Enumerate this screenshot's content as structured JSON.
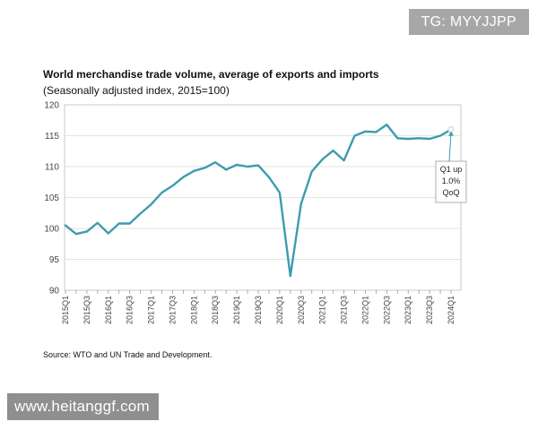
{
  "watermarks": {
    "top": "TG: MYYJJPP",
    "bottom": "www.heitanggf.com"
  },
  "source_note": "Source: WTO and UN Trade and Development.",
  "chart_data": {
    "type": "line",
    "title": "World merchandise trade volume, average of exports and imports",
    "subtitle": "(Seasonally adjusted index, 2015=100)",
    "xlabel": "",
    "ylabel": "",
    "ylim": [
      90,
      120
    ],
    "yticks": [
      90,
      95,
      100,
      105,
      110,
      115,
      120
    ],
    "grid": true,
    "categories": [
      "2015Q1",
      "2015Q2",
      "2015Q3",
      "2015Q4",
      "2016Q1",
      "2016Q2",
      "2016Q3",
      "2016Q4",
      "2017Q1",
      "2017Q2",
      "2017Q3",
      "2017Q4",
      "2018Q1",
      "2018Q2",
      "2018Q3",
      "2018Q4",
      "2019Q1",
      "2019Q2",
      "2019Q3",
      "2019Q4",
      "2020Q1",
      "2020Q2",
      "2020Q3",
      "2020Q4",
      "2021Q1",
      "2021Q2",
      "2021Q3",
      "2021Q4",
      "2022Q1",
      "2022Q2",
      "2022Q3",
      "2022Q4",
      "2023Q1",
      "2023Q2",
      "2023Q3",
      "2023Q4",
      "2024Q1"
    ],
    "tick_labels": [
      "2015Q1",
      "2015Q3",
      "2016Q1",
      "2016Q3",
      "2017Q1",
      "2017Q3",
      "2018Q1",
      "2018Q3",
      "2019Q1",
      "2019Q3",
      "2020Q1",
      "2020Q3",
      "2021Q1",
      "2021Q3",
      "2022Q1",
      "2022Q3",
      "2023Q1",
      "2023Q3",
      "2024Q1"
    ],
    "series": [
      {
        "name": "Trade volume index",
        "color": "#3e9bb0",
        "values": [
          100.5,
          99.1,
          99.5,
          100.9,
          99.2,
          100.8,
          100.8,
          102.4,
          103.9,
          105.8,
          106.9,
          108.3,
          109.3,
          109.8,
          110.7,
          109.5,
          110.3,
          110.0,
          110.2,
          108.3,
          105.8,
          92.3,
          104.0,
          109.2,
          111.2,
          112.6,
          111.0,
          115.0,
          115.7,
          115.6,
          116.8,
          114.6,
          114.5,
          114.6,
          114.5,
          115.0,
          116.0
        ]
      }
    ],
    "annotation": {
      "lines": [
        "Q1 up",
        "1.0%",
        "QoQ"
      ],
      "target": "2024Q1"
    }
  }
}
